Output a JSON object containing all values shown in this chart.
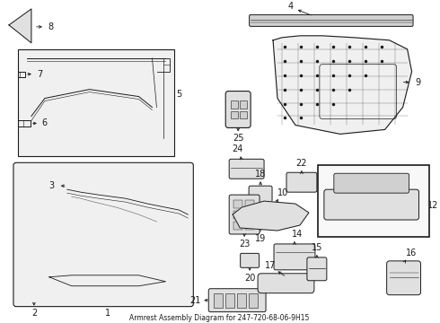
{
  "title": "Armrest Assembly Diagram for 247-720-68-06-9H15",
  "bg": "#ffffff",
  "lc": "#1a1a1a",
  "fig_width": 4.9,
  "fig_height": 3.6,
  "dpi": 100
}
